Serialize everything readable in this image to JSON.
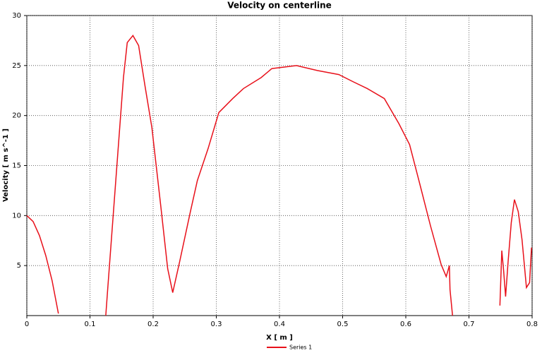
{
  "chart_data": {
    "type": "line",
    "title": "Velocity on centerline",
    "xlabel": "X [ m ]",
    "ylabel": "Velocity [ m s^-1 ]",
    "x": [
      0,
      0.01,
      0.02,
      0.03,
      0.04,
      0.05,
      0.09,
      0.125,
      0.128,
      0.153,
      0.159,
      0.168,
      0.177,
      0.187,
      0.198,
      0.212,
      0.223,
      0.231,
      0.242,
      0.259,
      0.27,
      0.287,
      0.304,
      0.326,
      0.343,
      0.371,
      0.388,
      0.427,
      0.46,
      0.494,
      0.516,
      0.539,
      0.566,
      0.589,
      0.606,
      0.622,
      0.639,
      0.656,
      0.664,
      0.669,
      0.67,
      0.674,
      0.71,
      0.749,
      0.752,
      0.755,
      0.758,
      0.762,
      0.767,
      0.772,
      0.778,
      0.784,
      0.791,
      0.796,
      0.799
    ],
    "series": [
      {
        "name": "Series 1",
        "color": "#e8101a",
        "values": [
          10,
          9.4,
          8,
          6,
          3.5,
          0.2,
          null,
          0,
          2.6,
          23.8,
          27.3,
          28,
          27,
          23,
          18.8,
          11,
          4.7,
          2.3,
          5.4,
          10.4,
          13.5,
          16.7,
          20.3,
          21.7,
          22.7,
          23.8,
          24.7,
          25,
          24.5,
          24.1,
          23.4,
          22.7,
          21.7,
          19.2,
          17.1,
          13.2,
          9,
          5.1,
          3.9,
          5,
          2.6,
          0,
          null,
          1,
          6.5,
          4.4,
          1.9,
          5.4,
          9.3,
          11.6,
          10.4,
          7.6,
          2.8,
          3.3,
          6.8
        ]
      }
    ],
    "xlim": [
      0,
      0.8
    ],
    "xticks": [
      0,
      0.1,
      0.2,
      0.3,
      0.4,
      0.5,
      0.6,
      0.7,
      0.8
    ],
    "ylim": [
      0,
      30
    ],
    "yticks": [
      5,
      10,
      15,
      20,
      25,
      30
    ],
    "grid": true,
    "legend": "bottom"
  }
}
